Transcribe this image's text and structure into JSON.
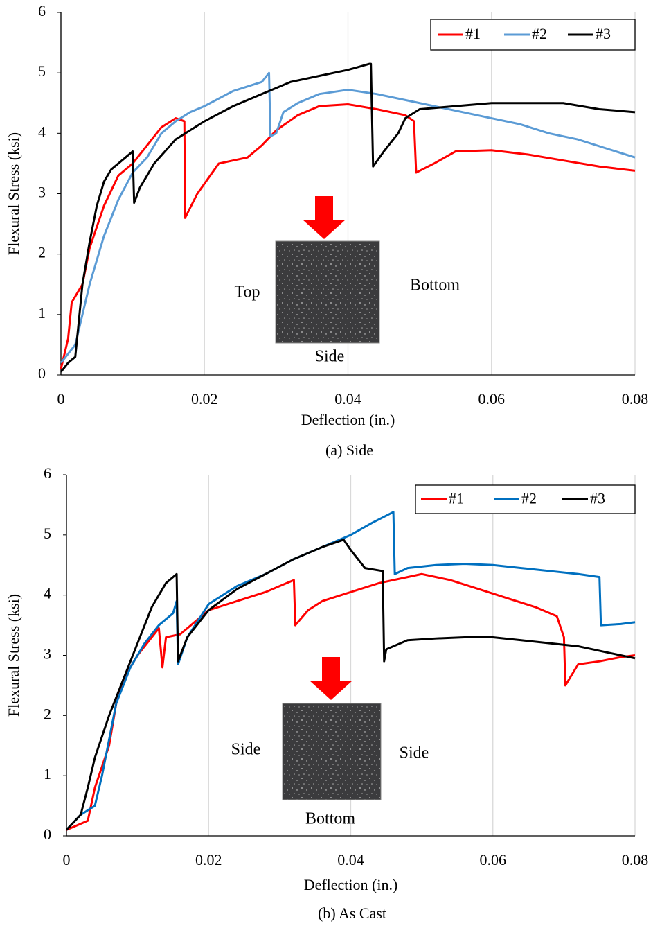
{
  "chart_data": [
    {
      "type": "line",
      "caption": "(a) Side",
      "xlabel": "Deflection (in.)",
      "ylabel": "Flexural Stress (ksi)",
      "xlim": [
        0,
        0.08
      ],
      "ylim": [
        0,
        6
      ],
      "xticks": [
        0,
        0.02,
        0.04,
        0.06,
        0.08
      ],
      "yticks": [
        0,
        1,
        2,
        3,
        4,
        5,
        6
      ],
      "grid": "x",
      "legend": "upper right",
      "annotations": [
        "Top",
        "Bottom",
        "Side"
      ],
      "series": [
        {
          "name": "#1",
          "color": "#ff0000",
          "x": [
            0,
            0.001,
            0.0015,
            0.003,
            0.004,
            0.006,
            0.008,
            0.01,
            0.012,
            0.014,
            0.016,
            0.0172,
            0.0173,
            0.019,
            0.022,
            0.026,
            0.028,
            0.03,
            0.033,
            0.036,
            0.04,
            0.044,
            0.048,
            0.0492,
            0.0495,
            0.052,
            0.055,
            0.06,
            0.065,
            0.07,
            0.075,
            0.08
          ],
          "values": [
            0.1,
            0.6,
            1.2,
            1.5,
            2.1,
            2.8,
            3.3,
            3.5,
            3.8,
            4.1,
            4.25,
            4.2,
            2.6,
            3.0,
            3.5,
            3.6,
            3.8,
            4.05,
            4.3,
            4.45,
            4.48,
            4.4,
            4.3,
            4.2,
            3.35,
            3.5,
            3.7,
            3.72,
            3.65,
            3.55,
            3.45,
            3.38
          ]
        },
        {
          "name": "#2",
          "color": "#5b9bd5",
          "x": [
            0,
            0.002,
            0.003,
            0.004,
            0.006,
            0.008,
            0.01,
            0.012,
            0.014,
            0.016,
            0.018,
            0.02,
            0.024,
            0.028,
            0.029,
            0.0292,
            0.03,
            0.031,
            0.033,
            0.036,
            0.04,
            0.044,
            0.048,
            0.052,
            0.056,
            0.06,
            0.064,
            0.068,
            0.072,
            0.076,
            0.08
          ],
          "values": [
            0.2,
            0.5,
            1.0,
            1.5,
            2.3,
            2.9,
            3.35,
            3.6,
            4.0,
            4.2,
            4.35,
            4.45,
            4.7,
            4.85,
            5.0,
            3.95,
            4.0,
            4.35,
            4.5,
            4.65,
            4.72,
            4.65,
            4.55,
            4.45,
            4.35,
            4.25,
            4.15,
            4.0,
            3.9,
            3.75,
            3.6
          ]
        },
        {
          "name": "#3",
          "color": "#000000",
          "x": [
            0,
            0.001,
            0.002,
            0.003,
            0.004,
            0.005,
            0.006,
            0.007,
            0.008,
            0.009,
            0.01,
            0.0102,
            0.011,
            0.013,
            0.016,
            0.02,
            0.024,
            0.028,
            0.032,
            0.036,
            0.04,
            0.043,
            0.0432,
            0.0435,
            0.045,
            0.047,
            0.048,
            0.05,
            0.055,
            0.06,
            0.065,
            0.07,
            0.075,
            0.08
          ],
          "values": [
            0.05,
            0.2,
            0.3,
            1.5,
            2.2,
            2.8,
            3.2,
            3.4,
            3.5,
            3.6,
            3.7,
            2.85,
            3.1,
            3.5,
            3.9,
            4.2,
            4.45,
            4.65,
            4.85,
            4.95,
            5.05,
            5.15,
            5.15,
            3.45,
            3.7,
            4.0,
            4.25,
            4.4,
            4.45,
            4.5,
            4.5,
            4.5,
            4.4,
            4.35
          ]
        }
      ]
    },
    {
      "type": "line",
      "caption": "(b) As Cast",
      "xlabel": "Deflection (in.)",
      "ylabel": "Flexural Stress (ksi)",
      "xlim": [
        0,
        0.08
      ],
      "ylim": [
        0,
        6
      ],
      "xticks": [
        0,
        0.02,
        0.04,
        0.06,
        0.08
      ],
      "yticks": [
        0,
        1,
        2,
        3,
        4,
        5,
        6
      ],
      "grid": "x",
      "legend": "upper right",
      "annotations": [
        "Side",
        "Side",
        "Bottom"
      ],
      "series": [
        {
          "name": "#1",
          "color": "#ff0000",
          "x": [
            0,
            0.002,
            0.003,
            0.004,
            0.006,
            0.007,
            0.008,
            0.01,
            0.012,
            0.013,
            0.0135,
            0.014,
            0.016,
            0.02,
            0.024,
            0.028,
            0.031,
            0.032,
            0.0322,
            0.034,
            0.036,
            0.04,
            0.044,
            0.048,
            0.05,
            0.054,
            0.058,
            0.062,
            0.066,
            0.069,
            0.07,
            0.0702,
            0.072,
            0.075,
            0.078,
            0.08
          ],
          "values": [
            0.1,
            0.2,
            0.25,
            0.8,
            1.5,
            2.2,
            2.6,
            3.0,
            3.3,
            3.45,
            2.8,
            3.3,
            3.35,
            3.75,
            3.9,
            4.05,
            4.2,
            4.25,
            3.5,
            3.75,
            3.9,
            4.05,
            4.2,
            4.3,
            4.35,
            4.25,
            4.1,
            3.95,
            3.8,
            3.65,
            3.3,
            2.5,
            2.85,
            2.9,
            2.97,
            3.0
          ]
        },
        {
          "name": "#2",
          "color": "#0070c0",
          "x": [
            0,
            0.002,
            0.004,
            0.005,
            0.006,
            0.007,
            0.009,
            0.011,
            0.013,
            0.015,
            0.0155,
            0.0157,
            0.017,
            0.02,
            0.024,
            0.028,
            0.032,
            0.036,
            0.04,
            0.043,
            0.046,
            0.0462,
            0.048,
            0.052,
            0.056,
            0.06,
            0.064,
            0.068,
            0.072,
            0.075,
            0.0752,
            0.078,
            0.08
          ],
          "values": [
            0.1,
            0.35,
            0.5,
            1.0,
            1.6,
            2.2,
            2.8,
            3.2,
            3.5,
            3.7,
            3.9,
            2.85,
            3.3,
            3.85,
            4.15,
            4.35,
            4.6,
            4.8,
            5.0,
            5.2,
            5.38,
            4.35,
            4.45,
            4.5,
            4.52,
            4.5,
            4.45,
            4.4,
            4.35,
            4.3,
            3.5,
            3.52,
            3.55
          ]
        },
        {
          "name": "#3",
          "color": "#000000",
          "x": [
            0,
            0.002,
            0.003,
            0.004,
            0.006,
            0.008,
            0.01,
            0.012,
            0.014,
            0.0155,
            0.0157,
            0.017,
            0.02,
            0.024,
            0.028,
            0.032,
            0.036,
            0.039,
            0.04,
            0.042,
            0.0445,
            0.0447,
            0.045,
            0.048,
            0.052,
            0.056,
            0.06,
            0.064,
            0.068,
            0.072,
            0.076,
            0.08
          ],
          "values": [
            0.1,
            0.35,
            0.8,
            1.3,
            2.0,
            2.6,
            3.2,
            3.8,
            4.2,
            4.35,
            2.9,
            3.3,
            3.75,
            4.1,
            4.35,
            4.6,
            4.8,
            4.92,
            4.75,
            4.45,
            4.4,
            2.9,
            3.1,
            3.25,
            3.28,
            3.3,
            3.3,
            3.25,
            3.2,
            3.15,
            3.05,
            2.95
          ]
        }
      ]
    }
  ]
}
